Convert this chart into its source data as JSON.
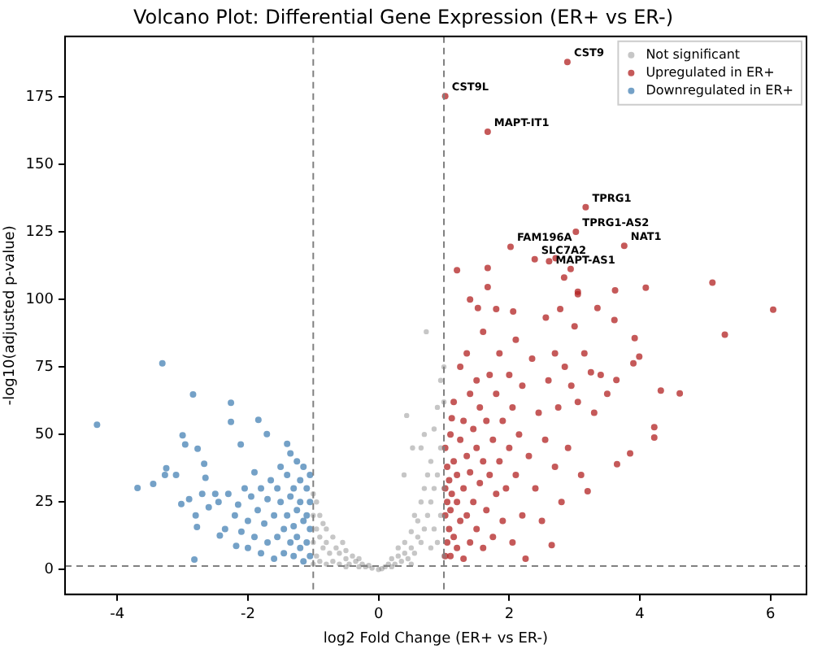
{
  "chart_data": {
    "type": "scatter",
    "title": "Volcano Plot: Differential Gene Expression (ER+ vs ER-)",
    "xlabel": "log2 Fold Change (ER+ vs ER-)",
    "ylabel": "-log10(adjusted p-value)",
    "xlim": [
      -4.8,
      6.55
    ],
    "ylim": [
      -9.2,
      197.3
    ],
    "xticks": [
      -4,
      -2,
      0,
      2,
      4,
      6
    ],
    "yticks": [
      0,
      25,
      50,
      75,
      100,
      125,
      150,
      175
    ],
    "grid": false,
    "legend": "top right",
    "marker": "circle",
    "ref_lines": [
      {
        "axis": "x",
        "value": -1,
        "color": "#808080",
        "line_style": "dashed"
      },
      {
        "axis": "x",
        "value": 1,
        "color": "#808080",
        "line_style": "dashed"
      },
      {
        "axis": "y",
        "value": 1.3,
        "color": "#808080",
        "line_style": "dashed"
      }
    ],
    "annotations": [
      {
        "text": "CST9",
        "x": 2.89,
        "y": 187.8
      },
      {
        "text": "CST9L",
        "x": 1.02,
        "y": 175.2
      },
      {
        "text": "MAPT-IT1",
        "x": 1.67,
        "y": 162
      },
      {
        "text": "TPRG1",
        "x": 3.17,
        "y": 134.1
      },
      {
        "text": "TPRG1-AS2",
        "x": 3.02,
        "y": 125
      },
      {
        "text": "FAM196A",
        "x": 2.02,
        "y": 119.4
      },
      {
        "text": "NAT1",
        "x": 3.76,
        "y": 119.8
      },
      {
        "text": "SLC7A2",
        "x": 2.39,
        "y": 114.8
      },
      {
        "text": "MAPT-AS1",
        "x": 2.61,
        "y": 114.1
      }
    ],
    "series": [
      {
        "name": "Not significant",
        "color": "#808080",
        "x": [
          -1,
          -1,
          -1,
          -1,
          -0.95,
          -0.95,
          -0.95,
          -0.9,
          -0.9,
          -0.9,
          -0.85,
          -0.85,
          -0.8,
          -0.8,
          -0.8,
          -0.75,
          -0.7,
          -0.7,
          -0.65,
          -0.6,
          -0.6,
          -0.55,
          -0.5,
          -0.5,
          -0.45,
          -0.4,
          -0.35,
          -0.3,
          -0.3,
          -0.25,
          -0.2,
          -0.15,
          -0.1,
          0,
          0.05,
          0.1,
          0.15,
          0.2,
          0.2,
          0.25,
          0.3,
          0.3,
          0.35,
          0.4,
          0.4,
          0.45,
          0.5,
          0.5,
          0.55,
          0.55,
          0.6,
          0.6,
          0.43,
          0.65,
          0.65,
          0.65,
          0.7,
          0.7,
          0.7,
          0.73,
          0.75,
          0.75,
          0.8,
          0.8,
          0.8,
          0.85,
          0.85,
          0.85,
          0.9,
          0.9,
          0.9,
          0.95,
          0.95,
          0.95,
          1,
          1,
          1,
          1,
          0.5,
          -0.5,
          0.39,
          0.52
        ],
        "values": [
          2,
          10,
          20,
          28,
          5,
          15,
          25,
          3,
          12,
          20,
          8,
          17,
          2,
          10,
          15,
          6,
          12,
          3,
          8,
          2,
          6,
          10,
          4,
          7,
          2,
          5,
          3,
          1,
          4,
          2,
          1,
          1.5,
          0.5,
          0,
          0.3,
          1,
          2,
          1,
          4,
          2,
          5,
          8,
          3,
          6,
          10,
          4,
          8,
          14,
          6,
          20,
          12,
          18,
          57,
          10,
          25,
          45,
          15,
          30,
          50,
          88,
          20,
          35,
          8,
          25,
          40,
          15,
          30,
          52,
          10,
          35,
          60,
          20,
          45,
          70,
          5,
          30,
          62,
          75,
          2,
          1,
          35,
          45
        ]
      },
      {
        "name": "Upregulated in ER+",
        "color": "#b22222",
        "x": [
          2.89,
          1.02,
          1.67,
          3.17,
          3.02,
          2.02,
          3.76,
          2.39,
          2.61,
          2.71,
          2.94,
          2.84,
          1.2,
          1.67,
          1.67,
          4.09,
          5.11,
          3.62,
          3.05,
          3.05,
          6.04,
          3.35,
          1.4,
          1.52,
          1.8,
          2.06,
          2.56,
          2.78,
          5.3,
          4.61,
          4.32,
          4.22,
          4.22,
          3.85,
          3.65,
          3.92,
          3.99,
          3.9,
          3.64,
          3.61,
          1.02,
          1.02,
          1.02,
          1.02,
          1.05,
          1.05,
          1.05,
          1.08,
          1.08,
          1.1,
          1.1,
          1.1,
          1.12,
          1.12,
          1.15,
          1.15,
          1.15,
          1.2,
          1.2,
          1.2,
          1.25,
          1.25,
          1.25,
          1.3,
          1.3,
          1.3,
          1.35,
          1.35,
          1.35,
          1.4,
          1.4,
          1.4,
          1.45,
          1.45,
          1.5,
          1.5,
          1.5,
          1.55,
          1.55,
          1.6,
          1.6,
          1.6,
          1.65,
          1.65,
          1.7,
          1.7,
          1.75,
          1.75,
          1.8,
          1.8,
          1.85,
          1.85,
          1.9,
          1.9,
          1.95,
          2,
          2,
          2.05,
          2.05,
          2.1,
          2.1,
          2.15,
          2.2,
          2.2,
          2.25,
          2.3,
          2.35,
          2.4,
          2.45,
          2.5,
          2.55,
          2.6,
          2.65,
          2.7,
          2.7,
          2.75,
          2.8,
          2.85,
          2.9,
          2.95,
          3,
          3.05,
          3.1,
          3.15,
          3.2,
          3.25,
          3.3,
          3.4,
          3.5
        ],
        "values": [
          187.8,
          175.2,
          162,
          134.1,
          125,
          119.4,
          119.8,
          114.8,
          114.1,
          115.2,
          111.2,
          108.1,
          110.8,
          111.6,
          104.5,
          104.3,
          106.2,
          103.3,
          101.9,
          102.8,
          96.2,
          96.8,
          99.9,
          96.8,
          96.4,
          95.5,
          93.2,
          96.4,
          86.9,
          65.2,
          66.2,
          52.7,
          48.8,
          43,
          39,
          85.6,
          78.8,
          76.3,
          70.1,
          92.3,
          5,
          20,
          30,
          45,
          10,
          25,
          38,
          15,
          33,
          5,
          22,
          50,
          28,
          56,
          12,
          40,
          62,
          8,
          25,
          35,
          18,
          48,
          75,
          4,
          30,
          55,
          20,
          42,
          80,
          10,
          36,
          65,
          25,
          52,
          15,
          45,
          70,
          32,
          60,
          8,
          40,
          88,
          22,
          55,
          35,
          72,
          12,
          48,
          28,
          65,
          40,
          80,
          18,
          55,
          30,
          45,
          72,
          10,
          60,
          35,
          85,
          50,
          20,
          68,
          4,
          42,
          78,
          30,
          58,
          18,
          48,
          70,
          9,
          38,
          80,
          60,
          25,
          75,
          45,
          68,
          90,
          62,
          35,
          80,
          29,
          73,
          58,
          72,
          65
        ]
      },
      {
        "name": "Downregulated in ER+",
        "color": "#4682b4",
        "x": [
          -4.31,
          -3.31,
          -2.84,
          -2.26,
          -3.69,
          -3.45,
          -3.27,
          -3.25,
          -3,
          -2.96,
          -2.77,
          -2.82,
          -3.02,
          -2.65,
          -2.67,
          -2.26,
          -2.11,
          -1.84,
          -1.71,
          -1.4,
          -2.43,
          -2.18,
          -2.78,
          -1.05,
          -1.05,
          -1.05,
          -1.05,
          -1.1,
          -1.1,
          -1.1,
          -1.15,
          -1.15,
          -1.15,
          -1.2,
          -1.2,
          -1.2,
          -1.25,
          -1.25,
          -1.25,
          -1.3,
          -1.3,
          -1.3,
          -1.35,
          -1.35,
          -1.35,
          -1.4,
          -1.4,
          -1.45,
          -1.45,
          -1.5,
          -1.5,
          -1.55,
          -1.55,
          -1.6,
          -1.6,
          -1.65,
          -1.7,
          -1.7,
          -1.75,
          -1.8,
          -1.8,
          -1.85,
          -1.9,
          -1.9,
          -1.95,
          -2,
          -2,
          -2.05,
          -2.1,
          -2.15,
          -2.2,
          -2.3,
          -2.35,
          -2.45,
          -2.5,
          -2.6,
          -2.7,
          -2.8,
          -2.9,
          -3.1
        ],
        "values": [
          53.6,
          76.3,
          64.8,
          61.7,
          30.2,
          31.7,
          35,
          37.5,
          49.7,
          46.3,
          44.7,
          3.7,
          24.2,
          33.9,
          39.1,
          54.6,
          46.3,
          55.4,
          50.1,
          46.5,
          12.6,
          8.7,
          15.7,
          5,
          15,
          25,
          35,
          10,
          20,
          30,
          3,
          18,
          38,
          8,
          25,
          33,
          12,
          22,
          40,
          5,
          16,
          30,
          10,
          27,
          43,
          20,
          35,
          6,
          15,
          25,
          38,
          12,
          30,
          4,
          20,
          33,
          10,
          26,
          17,
          6,
          30,
          22,
          12,
          36,
          27,
          8,
          18,
          30,
          14,
          24,
          20,
          28,
          15,
          25,
          28,
          23,
          28,
          20,
          26,
          35
        ]
      }
    ]
  }
}
